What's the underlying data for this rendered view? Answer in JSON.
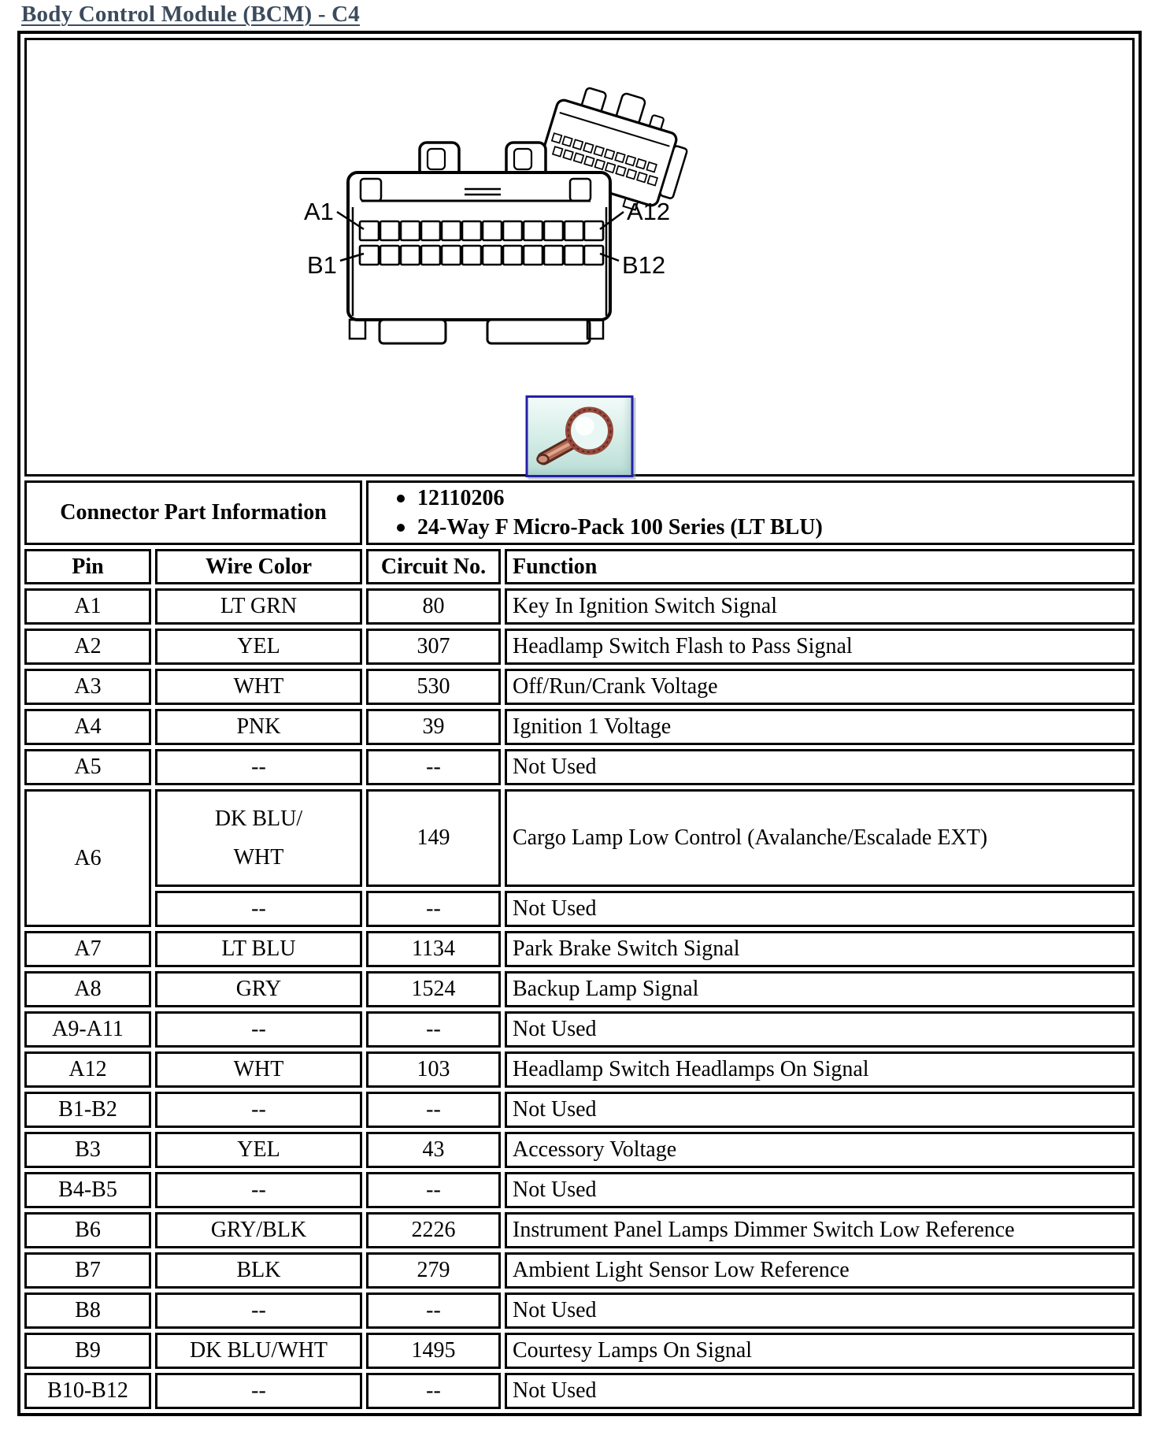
{
  "page": {
    "title": "Body Control Module (BCM) - C4"
  },
  "diagram": {
    "pin_labels": {
      "a1": "A1",
      "a12": "A12",
      "b1": "B1",
      "b12": "B12"
    },
    "zoom_button": {
      "icon": "magnifier-icon",
      "border_color": "#2520aa",
      "glass_color": "#96493c"
    }
  },
  "part_info": {
    "label": "Connector Part Information",
    "bullets": [
      "12110206",
      "24-Way F Micro-Pack 100 Series (LT BLU)"
    ]
  },
  "pin_table": {
    "headers": [
      "Pin",
      "Wire Color",
      "Circuit No.",
      "Function"
    ],
    "rows": [
      {
        "pin": "A1",
        "wire": "LT GRN",
        "circuit": "80",
        "function": "Key In Ignition Switch Signal"
      },
      {
        "pin": "A2",
        "wire": "YEL",
        "circuit": "307",
        "function": "Headlamp Switch Flash to Pass Signal"
      },
      {
        "pin": "A3",
        "wire": "WHT",
        "circuit": "530",
        "function": "Off/Run/Crank Voltage"
      },
      {
        "pin": "A4",
        "wire": "PNK",
        "circuit": "39",
        "function": "Ignition 1 Voltage"
      },
      {
        "pin": "A5",
        "wire": "--",
        "circuit": "--",
        "function": "Not Used"
      },
      {
        "pin": "A6",
        "sub_rows": [
          {
            "wire_lines": [
              "DK BLU/",
              "WHT"
            ],
            "circuit": "149",
            "function": "Cargo Lamp Low Control (Avalanche/Escalade EXT)"
          },
          {
            "wire": "--",
            "circuit": "--",
            "function": "Not Used"
          }
        ]
      },
      {
        "pin": "A7",
        "wire": "LT BLU",
        "circuit": "1134",
        "function": "Park Brake Switch Signal"
      },
      {
        "pin": "A8",
        "wire": "GRY",
        "circuit": "1524",
        "function": "Backup Lamp Signal"
      },
      {
        "pin": "A9-A11",
        "wire": "--",
        "circuit": "--",
        "function": "Not Used"
      },
      {
        "pin": "A12",
        "wire": "WHT",
        "circuit": "103",
        "function": "Headlamp Switch Headlamps On Signal"
      },
      {
        "pin": "B1-B2",
        "wire": "--",
        "circuit": "--",
        "function": "Not Used"
      },
      {
        "pin": "B3",
        "wire": "YEL",
        "circuit": "43",
        "function": "Accessory Voltage"
      },
      {
        "pin": "B4-B5",
        "wire": "--",
        "circuit": "--",
        "function": "Not Used"
      },
      {
        "pin": "B6",
        "wire": "GRY/BLK",
        "circuit": "2226",
        "function": "Instrument Panel Lamps Dimmer Switch Low Reference"
      },
      {
        "pin": "B7",
        "wire": "BLK",
        "circuit": "279",
        "function": "Ambient Light Sensor Low Reference"
      },
      {
        "pin": "B8",
        "wire": "--",
        "circuit": "--",
        "function": "Not Used"
      },
      {
        "pin": "B9",
        "wire": "DK BLU/WHT",
        "circuit": "1495",
        "function": "Courtesy Lamps On Signal"
      },
      {
        "pin": "B10-B12",
        "wire": "--",
        "circuit": "--",
        "function": "Not Used"
      }
    ]
  }
}
